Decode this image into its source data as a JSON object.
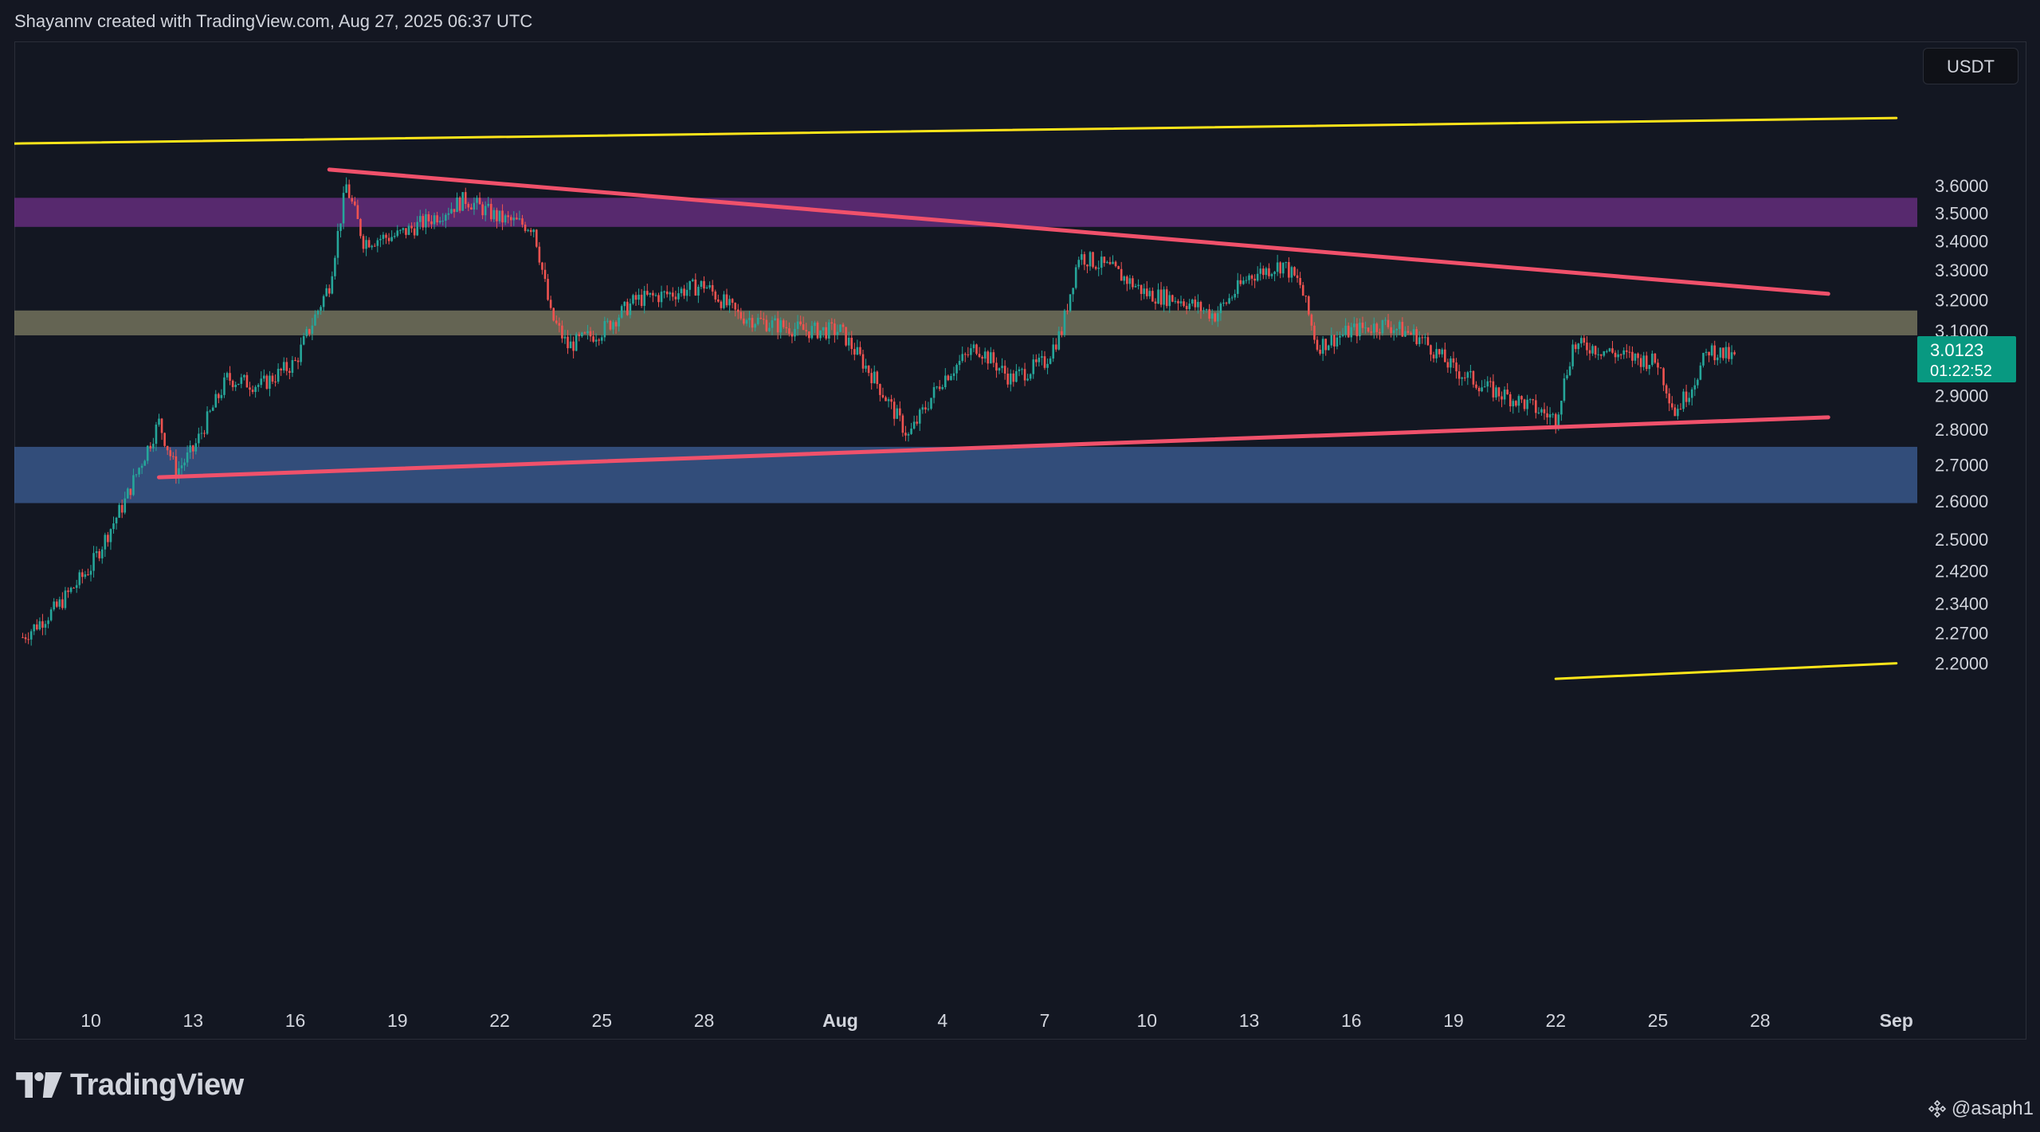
{
  "header": {
    "attribution": "Shayannv created with TradingView.com, Aug 27, 2025 06:37 UTC"
  },
  "currency": "USDT",
  "branding": {
    "logo_text": "TradingView",
    "watermark": "@asaph1"
  },
  "colors": {
    "background": "#131722",
    "up_candle": "#26a69a",
    "down_candle": "#ef5350",
    "pattern_line": "#f0516b",
    "channel_line": "#ffe51a",
    "zone_purple": "#6a2e84",
    "zone_tan": "#7b7a62",
    "zone_blue": "#3b5c94",
    "last_price": "#089981"
  },
  "chart_data": {
    "type": "candlestick",
    "price_scale": "log",
    "y_ticks": [
      "3.6000",
      "3.5000",
      "3.4000",
      "3.3000",
      "3.2000",
      "3.1000",
      "2.9000",
      "2.8000",
      "2.7000",
      "2.6000",
      "2.5000",
      "2.4200",
      "2.3400",
      "2.2700",
      "2.2000"
    ],
    "x_ticks": [
      "10",
      "13",
      "16",
      "19",
      "22",
      "25",
      "28",
      "Aug",
      "4",
      "7",
      "10",
      "13",
      "16",
      "19",
      "22",
      "25",
      "28",
      "Sep"
    ],
    "last_price": {
      "value": "3.0123",
      "countdown": "01:22:52"
    },
    "zones": [
      {
        "name": "supply",
        "from": 3.45,
        "to": 3.555,
        "color": "#6a2e84"
      },
      {
        "name": "mid",
        "from": 3.085,
        "to": 3.165,
        "color": "#7b7a62"
      },
      {
        "name": "demand",
        "from": 2.595,
        "to": 2.75,
        "color": "#3b5c94"
      }
    ],
    "trendlines": [
      {
        "name": "upper-wedge",
        "from": [
          "2025-07-17",
          3.66
        ],
        "to": [
          "2025-08-30",
          3.22
        ],
        "color": "#f0516b"
      },
      {
        "name": "lower-wedge",
        "from": [
          "2025-07-12",
          2.665
        ],
        "to": [
          "2025-08-30",
          2.835
        ],
        "color": "#f0516b"
      },
      {
        "name": "channel-top",
        "from": [
          "2025-07-08",
          3.76
        ],
        "to": [
          "2025-09-01",
          3.86
        ],
        "color": "#ffe51a"
      },
      {
        "name": "channel-bottom",
        "from": [
          "2025-08-22",
          2.165
        ],
        "to": [
          "2025-09-01",
          2.2
        ],
        "color": "#ffe51a"
      }
    ],
    "price_path": [
      [
        "2025-07-08",
        2.26
      ],
      [
        "2025-07-09",
        2.33
      ],
      [
        "2025-07-10",
        2.43
      ],
      [
        "2025-07-11",
        2.6
      ],
      [
        "2025-07-12",
        2.82
      ],
      [
        "2025-07-12 12:00",
        2.68
      ],
      [
        "2025-07-13",
        2.74
      ],
      [
        "2025-07-14",
        2.95
      ],
      [
        "2025-07-15",
        2.93
      ],
      [
        "2025-07-16",
        3.0
      ],
      [
        "2025-07-17",
        3.25
      ],
      [
        "2025-07-17 12:00",
        3.6
      ],
      [
        "2025-07-18",
        3.4
      ],
      [
        "2025-07-19",
        3.42
      ],
      [
        "2025-07-20",
        3.48
      ],
      [
        "2025-07-21",
        3.55
      ],
      [
        "2025-07-22",
        3.48
      ],
      [
        "2025-07-23",
        3.45
      ],
      [
        "2025-07-23 12:00",
        3.15
      ],
      [
        "2025-07-24",
        3.05
      ],
      [
        "2025-07-25",
        3.1
      ],
      [
        "2025-07-26",
        3.2
      ],
      [
        "2025-07-27",
        3.22
      ],
      [
        "2025-07-28",
        3.25
      ],
      [
        "2025-07-29",
        3.15
      ],
      [
        "2025-07-30",
        3.12
      ],
      [
        "2025-07-31",
        3.1
      ],
      [
        "2025-08-01",
        3.1
      ],
      [
        "2025-08-02",
        2.95
      ],
      [
        "2025-08-03",
        2.78
      ],
      [
        "2025-08-04",
        2.95
      ],
      [
        "2025-08-05",
        3.05
      ],
      [
        "2025-08-06",
        2.95
      ],
      [
        "2025-08-07",
        3.0
      ],
      [
        "2025-08-07 12:00",
        3.1
      ],
      [
        "2025-08-08",
        3.35
      ],
      [
        "2025-08-09",
        3.3
      ],
      [
        "2025-08-10",
        3.22
      ],
      [
        "2025-08-11",
        3.2
      ],
      [
        "2025-08-12",
        3.15
      ],
      [
        "2025-08-13",
        3.28
      ],
      [
        "2025-08-14",
        3.32
      ],
      [
        "2025-08-14 12:00",
        3.25
      ],
      [
        "2025-08-15",
        3.05
      ],
      [
        "2025-08-16",
        3.1
      ],
      [
        "2025-08-17",
        3.12
      ],
      [
        "2025-08-18",
        3.08
      ],
      [
        "2025-08-19",
        2.98
      ],
      [
        "2025-08-20",
        2.92
      ],
      [
        "2025-08-21",
        2.88
      ],
      [
        "2025-08-22",
        2.83
      ],
      [
        "2025-08-22 12:00",
        3.05
      ],
      [
        "2025-08-23",
        3.05
      ],
      [
        "2025-08-24",
        3.02
      ],
      [
        "2025-08-25",
        3.0
      ],
      [
        "2025-08-25 12:00",
        2.85
      ],
      [
        "2025-08-26",
        2.93
      ],
      [
        "2025-08-26 12:00",
        3.04
      ],
      [
        "2025-08-27 06:00",
        3.0123
      ]
    ]
  }
}
